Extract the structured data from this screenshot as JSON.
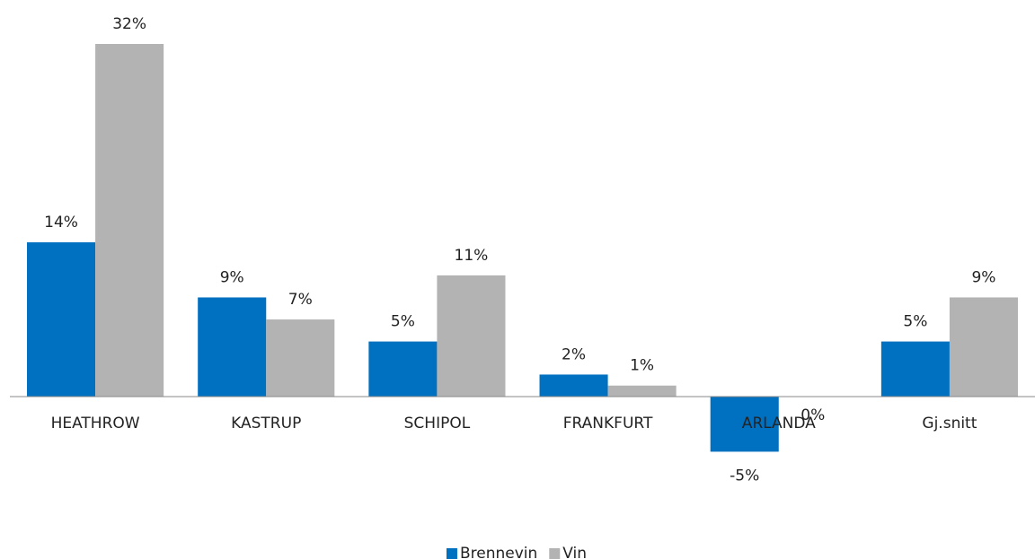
{
  "chart_data": {
    "type": "bar",
    "categories": [
      "HEATHROW",
      "KASTRUP",
      "SCHIPOL",
      "FRANKFURT",
      "ARLANDA",
      "Gj.snitt"
    ],
    "series": [
      {
        "name": "Brennevin",
        "color": "#0070c0",
        "values": [
          14,
          9,
          5,
          2,
          -5,
          5
        ],
        "value_labels": [
          "14%",
          "9%",
          "5%",
          "2%",
          "-5%",
          "5%"
        ]
      },
      {
        "name": "Vin",
        "color": "#b3b3b3",
        "values": [
          32,
          7,
          11,
          1,
          0,
          9
        ],
        "value_labels": [
          "32%",
          "7%",
          "11%",
          "1%",
          "0%",
          "9%"
        ]
      }
    ],
    "legend": "bottom"
  }
}
